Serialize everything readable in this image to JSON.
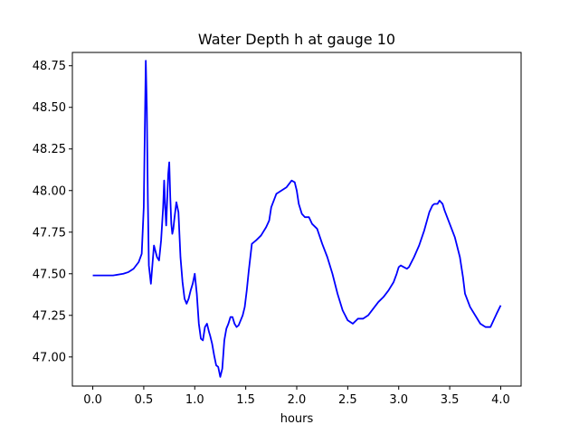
{
  "chart_data": {
    "type": "line",
    "title": "Water Depth h at gauge 10",
    "xlabel": "hours",
    "ylabel": "",
    "xlim": [
      -0.2,
      4.2
    ],
    "ylim": [
      46.825,
      48.83
    ],
    "x_ticks": [
      0.0,
      0.5,
      1.0,
      1.5,
      2.0,
      2.5,
      3.0,
      3.5,
      4.0
    ],
    "x_tick_labels": [
      "0.0",
      "0.5",
      "1.0",
      "1.5",
      "2.0",
      "2.5",
      "3.0",
      "3.5",
      "4.0"
    ],
    "y_ticks": [
      47.0,
      47.25,
      47.5,
      47.75,
      48.0,
      48.25,
      48.5,
      48.75
    ],
    "y_tick_labels": [
      "47.00",
      "47.25",
      "47.50",
      "47.75",
      "48.00",
      "48.25",
      "48.50",
      "48.75"
    ],
    "grid": false,
    "series": [
      {
        "color": "#0000ff",
        "x": [
          0.0,
          0.1,
          0.2,
          0.3,
          0.35,
          0.4,
          0.45,
          0.48,
          0.5,
          0.51,
          0.52,
          0.53,
          0.54,
          0.55,
          0.57,
          0.6,
          0.63,
          0.65,
          0.67,
          0.69,
          0.7,
          0.71,
          0.72,
          0.73,
          0.74,
          0.75,
          0.76,
          0.77,
          0.78,
          0.79,
          0.8,
          0.82,
          0.84,
          0.86,
          0.88,
          0.9,
          0.92,
          0.94,
          0.96,
          0.98,
          1.0,
          1.02,
          1.04,
          1.06,
          1.08,
          1.1,
          1.12,
          1.14,
          1.15,
          1.17,
          1.19,
          1.21,
          1.23,
          1.25,
          1.27,
          1.29,
          1.31,
          1.33,
          1.35,
          1.37,
          1.39,
          1.41,
          1.43,
          1.45,
          1.47,
          1.49,
          1.51,
          1.53,
          1.56,
          1.6,
          1.65,
          1.7,
          1.73,
          1.75,
          1.8,
          1.85,
          1.9,
          1.95,
          1.98,
          2.0,
          2.02,
          2.05,
          2.08,
          2.12,
          2.15,
          2.2,
          2.25,
          2.3,
          2.35,
          2.4,
          2.45,
          2.5,
          2.55,
          2.6,
          2.65,
          2.7,
          2.75,
          2.8,
          2.85,
          2.9,
          2.95,
          2.98,
          3.0,
          3.02,
          3.05,
          3.08,
          3.1,
          3.15,
          3.2,
          3.25,
          3.3,
          3.33,
          3.35,
          3.38,
          3.4,
          3.43,
          3.45,
          3.5,
          3.55,
          3.6,
          3.63,
          3.65,
          3.7,
          3.75,
          3.8,
          3.85,
          3.88,
          3.9,
          3.93,
          3.96,
          4.0
        ],
        "y": [
          47.49,
          47.49,
          47.49,
          47.5,
          47.51,
          47.53,
          47.57,
          47.62,
          47.9,
          48.35,
          48.78,
          48.5,
          47.95,
          47.55,
          47.44,
          47.67,
          47.6,
          47.58,
          47.7,
          47.9,
          48.06,
          47.9,
          47.79,
          47.95,
          48.1,
          48.17,
          47.96,
          47.8,
          47.74,
          47.77,
          47.83,
          47.93,
          47.87,
          47.6,
          47.45,
          47.35,
          47.32,
          47.35,
          47.4,
          47.44,
          47.5,
          47.38,
          47.2,
          47.11,
          47.1,
          47.18,
          47.2,
          47.15,
          47.13,
          47.08,
          47.01,
          46.95,
          46.94,
          46.88,
          46.93,
          47.1,
          47.17,
          47.2,
          47.24,
          47.24,
          47.2,
          47.18,
          47.19,
          47.22,
          47.25,
          47.3,
          47.4,
          47.52,
          47.68,
          47.7,
          47.73,
          47.78,
          47.82,
          47.9,
          47.98,
          48.0,
          48.02,
          48.06,
          48.05,
          48.0,
          47.92,
          47.86,
          47.84,
          47.84,
          47.8,
          47.77,
          47.68,
          47.6,
          47.5,
          47.38,
          47.28,
          47.22,
          47.2,
          47.23,
          47.23,
          47.25,
          47.29,
          47.33,
          47.36,
          47.4,
          47.45,
          47.5,
          47.54,
          47.55,
          47.54,
          47.53,
          47.54,
          47.6,
          47.67,
          47.76,
          47.87,
          47.91,
          47.92,
          47.92,
          47.94,
          47.92,
          47.88,
          47.8,
          47.72,
          47.6,
          47.48,
          47.38,
          47.3,
          47.25,
          47.2,
          47.18,
          47.18,
          47.18,
          47.22,
          47.26,
          47.31
        ]
      }
    ]
  }
}
